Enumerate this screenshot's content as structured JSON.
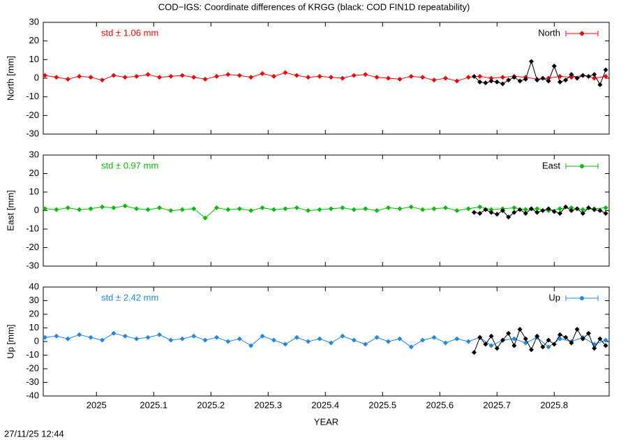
{
  "chart_data": [
    {
      "type": "line",
      "title": "COD−IGS: Coordinate differences of KRGG (black: COD FIN1D repeatability)",
      "ylabel": "North [mm]",
      "annotation": "std ± 1.06 mm",
      "legend": "top right",
      "xlim": [
        2024.907,
        2025.896
      ],
      "xticks": [
        2025,
        2025.1,
        2025.2,
        2025.3,
        2025.4,
        2025.5,
        2025.6,
        2025.7,
        2025.8
      ],
      "ylim": [
        -30,
        30
      ],
      "yticks": [
        -30,
        -20,
        -10,
        0,
        10,
        20,
        30
      ],
      "series": [
        {
          "name": "North",
          "color": "#ff0000",
          "x": [
            2024.91,
            2024.93,
            2024.95,
            2024.97,
            2024.99,
            2025.01,
            2025.03,
            2025.05,
            2025.07,
            2025.09,
            2025.11,
            2025.13,
            2025.15,
            2025.17,
            2025.19,
            2025.21,
            2025.23,
            2025.25,
            2025.27,
            2025.29,
            2025.31,
            2025.33,
            2025.35,
            2025.37,
            2025.39,
            2025.41,
            2025.43,
            2025.45,
            2025.47,
            2025.49,
            2025.51,
            2025.53,
            2025.55,
            2025.57,
            2025.59,
            2025.61,
            2025.63,
            2025.65,
            2025.67,
            2025.69,
            2025.71,
            2025.73,
            2025.75,
            2025.77,
            2025.79,
            2025.81,
            2025.83,
            2025.85,
            2025.87,
            2025.89
          ],
          "values": [
            1.5,
            0.5,
            -0.5,
            1,
            0.5,
            -1,
            1.5,
            0.5,
            1,
            2,
            0.5,
            1,
            1.5,
            0.5,
            -0.5,
            1,
            2,
            1.5,
            0.5,
            2.5,
            1,
            3,
            1.5,
            0.5,
            1,
            0.5,
            0,
            1.5,
            2,
            0.5,
            0,
            -0.5,
            1,
            0.5,
            -1,
            0,
            -1.5,
            0.5,
            1,
            0,
            0.5,
            1,
            0.5,
            -0.5,
            0,
            1,
            0.5,
            1.5,
            0,
            1
          ]
        },
        {
          "color": "#000000",
          "x": [
            2025.66,
            2025.67,
            2025.68,
            2025.69,
            2025.7,
            2025.71,
            2025.72,
            2025.73,
            2025.74,
            2025.75,
            2025.76,
            2025.77,
            2025.78,
            2025.79,
            2025.8,
            2025.81,
            2025.82,
            2025.83,
            2025.84,
            2025.85,
            2025.86,
            2025.87,
            2025.88,
            2025.89
          ],
          "values": [
            1,
            -2,
            -2.5,
            -1.5,
            -2,
            -3,
            -1,
            0.5,
            -1.5,
            -0.5,
            9,
            -1,
            0,
            -1.5,
            6.5,
            -2,
            -1,
            2,
            0,
            1.5,
            1,
            2,
            -3.5,
            4.5
          ]
        }
      ]
    },
    {
      "type": "line",
      "ylabel": "East [mm]",
      "annotation": "std ± 0.97 mm",
      "legend": "top right",
      "xlim": [
        2024.907,
        2025.896
      ],
      "xticks": [
        2025,
        2025.1,
        2025.2,
        2025.3,
        2025.4,
        2025.5,
        2025.6,
        2025.7,
        2025.8
      ],
      "ylim": [
        -30,
        30
      ],
      "yticks": [
        -30,
        -20,
        -10,
        0,
        10,
        20,
        30
      ],
      "series": [
        {
          "name": "East",
          "color": "#00c000",
          "x": [
            2024.91,
            2024.93,
            2024.95,
            2024.97,
            2024.99,
            2025.01,
            2025.03,
            2025.05,
            2025.07,
            2025.09,
            2025.11,
            2025.13,
            2025.15,
            2025.17,
            2025.19,
            2025.21,
            2025.23,
            2025.25,
            2025.27,
            2025.29,
            2025.31,
            2025.33,
            2025.35,
            2025.37,
            2025.39,
            2025.41,
            2025.43,
            2025.45,
            2025.47,
            2025.49,
            2025.51,
            2025.53,
            2025.55,
            2025.57,
            2025.59,
            2025.61,
            2025.63,
            2025.65,
            2025.67,
            2025.69,
            2025.71,
            2025.73,
            2025.75,
            2025.77,
            2025.79,
            2025.81,
            2025.83,
            2025.85,
            2025.87,
            2025.89
          ],
          "values": [
            1,
            0.5,
            1.5,
            0.5,
            1,
            2,
            1.5,
            2.5,
            1,
            0.5,
            1.5,
            0,
            0.5,
            1,
            -4,
            1.5,
            0.5,
            1,
            0,
            1.5,
            0.5,
            1,
            1.5,
            0,
            0.5,
            1,
            1.5,
            0.5,
            1,
            0,
            1.5,
            1,
            2,
            0.5,
            1,
            1.5,
            0,
            1,
            2,
            0.5,
            1,
            1.5,
            0.5,
            1,
            0,
            1,
            1.5,
            0.5,
            1,
            1.5
          ]
        },
        {
          "color": "#000000",
          "x": [
            2025.66,
            2025.67,
            2025.68,
            2025.69,
            2025.7,
            2025.71,
            2025.72,
            2025.73,
            2025.74,
            2025.75,
            2025.76,
            2025.77,
            2025.78,
            2025.79,
            2025.8,
            2025.81,
            2025.82,
            2025.83,
            2025.84,
            2025.85,
            2025.86,
            2025.87,
            2025.88,
            2025.89
          ],
          "values": [
            -1,
            -1.5,
            0.5,
            -1,
            -2,
            0,
            -3.5,
            -1,
            0.5,
            -1.5,
            1,
            -1,
            0,
            1,
            -0.5,
            -1.5,
            2,
            0,
            1,
            -1.5,
            1.5,
            0.5,
            0,
            -1.5
          ]
        }
      ]
    },
    {
      "type": "line",
      "ylabel": "Up [mm]",
      "annotation": "std ± 2.42 mm",
      "legend": "top right",
      "xlabel": "YEAR",
      "xlim": [
        2024.907,
        2025.896
      ],
      "xticks": [
        2025,
        2025.1,
        2025.2,
        2025.3,
        2025.4,
        2025.5,
        2025.6,
        2025.7,
        2025.8
      ],
      "ylim": [
        -40,
        40
      ],
      "yticks": [
        -40,
        -30,
        -20,
        -10,
        0,
        10,
        20,
        30,
        40
      ],
      "series": [
        {
          "name": "Up",
          "color": "#1e88e5",
          "x": [
            2024.91,
            2024.93,
            2024.95,
            2024.97,
            2024.99,
            2025.01,
            2025.03,
            2025.05,
            2025.07,
            2025.09,
            2025.11,
            2025.13,
            2025.15,
            2025.17,
            2025.19,
            2025.21,
            2025.23,
            2025.25,
            2025.27,
            2025.29,
            2025.31,
            2025.33,
            2025.35,
            2025.37,
            2025.39,
            2025.41,
            2025.43,
            2025.45,
            2025.47,
            2025.49,
            2025.51,
            2025.53,
            2025.55,
            2025.57,
            2025.59,
            2025.61,
            2025.63,
            2025.65,
            2025.67,
            2025.69,
            2025.71,
            2025.73,
            2025.75,
            2025.77,
            2025.79,
            2025.81,
            2025.83,
            2025.85,
            2025.87,
            2025.89
          ],
          "values": [
            3,
            4,
            2,
            5,
            3,
            1,
            6,
            4,
            2,
            3,
            5,
            1,
            2,
            4,
            1,
            3,
            0,
            2,
            -3,
            4,
            1,
            -2,
            3,
            0,
            2,
            -1,
            4,
            1,
            -2,
            3,
            0,
            2,
            -4,
            1,
            3,
            -1,
            2,
            0,
            3,
            -3,
            1,
            2,
            -1,
            3,
            -4,
            2,
            0,
            3,
            -2,
            1
          ]
        },
        {
          "color": "#000000",
          "x": [
            2025.66,
            2025.67,
            2025.68,
            2025.69,
            2025.7,
            2025.71,
            2025.72,
            2025.73,
            2025.74,
            2025.75,
            2025.76,
            2025.77,
            2025.78,
            2025.79,
            2025.8,
            2025.81,
            2025.82,
            2025.83,
            2025.84,
            2025.85,
            2025.86,
            2025.87,
            2025.88,
            2025.89
          ],
          "values": [
            -8,
            3,
            -2,
            4,
            -5,
            1,
            6,
            -3,
            9,
            2,
            -6,
            4,
            -4,
            1,
            -2,
            5,
            3,
            -1,
            9,
            2,
            6,
            -5,
            2,
            -3
          ]
        }
      ]
    }
  ],
  "timestamp": "27/11/25 12:44"
}
